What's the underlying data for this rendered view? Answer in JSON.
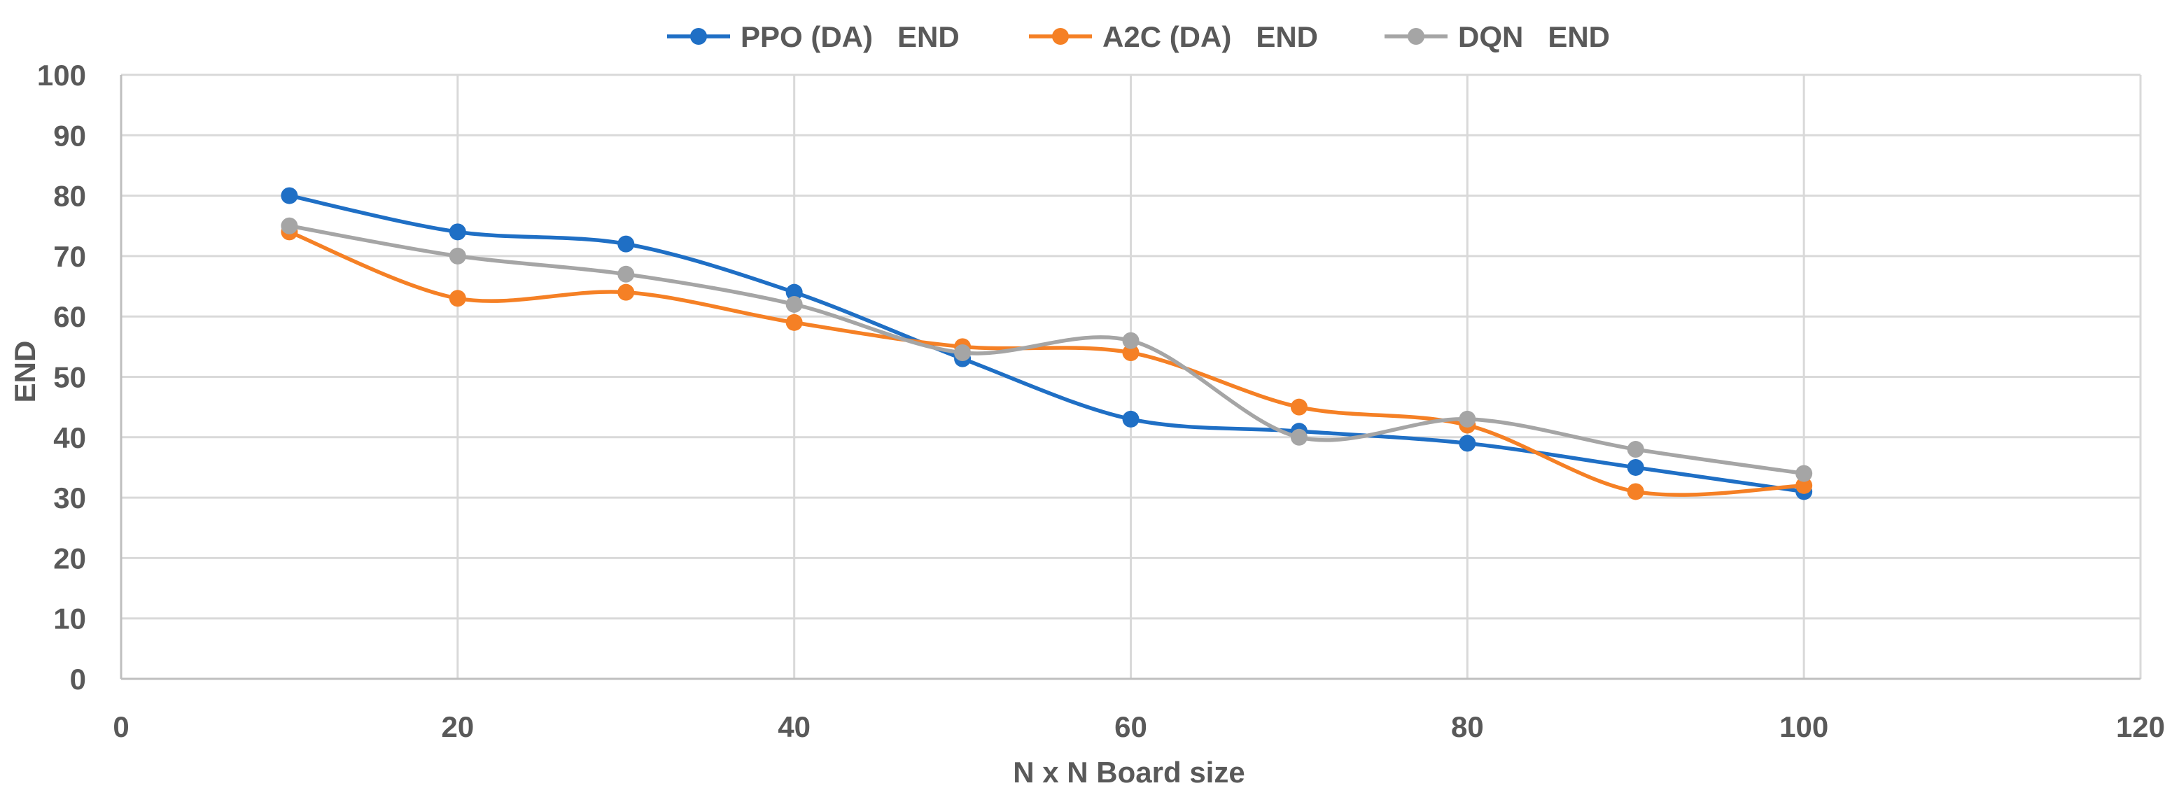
{
  "chart_data": {
    "type": "line",
    "title": "",
    "xlabel": "N x N Board size",
    "ylabel": "END",
    "xlim": [
      0,
      120
    ],
    "ylim": [
      0,
      100
    ],
    "x_ticks": [
      0,
      20,
      40,
      60,
      80,
      100,
      120
    ],
    "y_ticks": [
      0,
      10,
      20,
      30,
      40,
      50,
      60,
      70,
      80,
      90,
      100
    ],
    "grid": true,
    "legend_position": "top-center",
    "x": [
      10,
      20,
      30,
      40,
      50,
      60,
      70,
      80,
      90,
      100
    ],
    "series": [
      {
        "name": "PPO (DA)   END",
        "color": "#1f6fc5",
        "values": [
          80,
          74,
          72,
          64,
          53,
          43,
          41,
          39,
          35,
          31
        ]
      },
      {
        "name": "A2C (DA)   END",
        "color": "#f58025",
        "values": [
          74,
          63,
          64,
          59,
          55,
          54,
          45,
          42,
          31,
          32
        ]
      },
      {
        "name": "DQN   END",
        "color": "#a5a5a5",
        "values": [
          75,
          70,
          67,
          62,
          54,
          56,
          40,
          43,
          38,
          34
        ]
      }
    ]
  }
}
